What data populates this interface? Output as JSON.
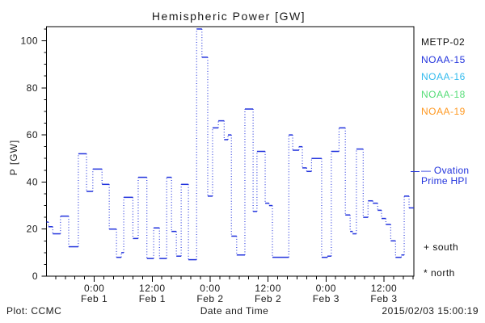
{
  "title": "Hemispheric Power [GW]",
  "footer": {
    "plot_credit": "Plot: CCMC",
    "timestamp": "2015/02/03 15:00:19"
  },
  "legend": {
    "satellites": [
      {
        "label": "METP-02",
        "color": "#111111"
      },
      {
        "label": "NOAA-15",
        "color": "#2233dd"
      },
      {
        "label": "NOAA-16",
        "color": "#33bbee"
      },
      {
        "label": "NOAA-18",
        "color": "#55dd77"
      },
      {
        "label": "NOAA-19",
        "color": "#ff9922"
      }
    ],
    "line_sample_line1": "— Ovation",
    "line_sample_line2": "Prime HPI",
    "south_label": "+ south",
    "north_label": "* north"
  },
  "colors": {
    "curve": "#2233dd",
    "axis": "#000000",
    "text": "#1a1a1a"
  },
  "chart_data": {
    "type": "line",
    "subtype": "step-dotted",
    "title": "Hemispheric Power [GW]",
    "xlabel": "Date and Time",
    "ylabel": "P [GW]",
    "series_name": "Ovation Prime HPI",
    "ylim": [
      0,
      106
    ],
    "y_ticks": [
      0,
      20,
      40,
      60,
      80,
      100
    ],
    "y_minor_step": 5,
    "x_span_hours": 76.1,
    "x_minor_start_hours": 1.9,
    "x_minor_step_hours": 2,
    "x_major_ticks": [
      {
        "t": 9.9,
        "time": "0:00",
        "date": "Feb 1"
      },
      {
        "t": 21.9,
        "time": "12:00",
        "date": "Feb 1"
      },
      {
        "t": 33.9,
        "time": "0:00",
        "date": "Feb 2"
      },
      {
        "t": 45.9,
        "time": "12:00",
        "date": "Feb 2"
      },
      {
        "t": 57.9,
        "time": "0:00",
        "date": "Feb 3"
      },
      {
        "t": 69.9,
        "time": "12:00",
        "date": "Feb 3"
      }
    ],
    "t_end": 76.1,
    "steps": [
      [
        0.0,
        23
      ],
      [
        0.4,
        21
      ],
      [
        1.3,
        18
      ],
      [
        2.9,
        25.5
      ],
      [
        4.6,
        12.5
      ],
      [
        6.6,
        52
      ],
      [
        8.3,
        36
      ],
      [
        9.6,
        45.5
      ],
      [
        11.5,
        39
      ],
      [
        13.0,
        20
      ],
      [
        14.5,
        8
      ],
      [
        15.5,
        10
      ],
      [
        16.0,
        33.5
      ],
      [
        17.9,
        16
      ],
      [
        19.0,
        42
      ],
      [
        20.8,
        7.5
      ],
      [
        22.2,
        20.5
      ],
      [
        23.4,
        7.5
      ],
      [
        24.9,
        42
      ],
      [
        25.9,
        19
      ],
      [
        26.9,
        8.5
      ],
      [
        27.9,
        39
      ],
      [
        29.4,
        7
      ],
      [
        31.1,
        105
      ],
      [
        32.2,
        93
      ],
      [
        33.4,
        34
      ],
      [
        34.4,
        63
      ],
      [
        35.6,
        66
      ],
      [
        36.8,
        58
      ],
      [
        37.6,
        60
      ],
      [
        38.3,
        17
      ],
      [
        39.4,
        9
      ],
      [
        41.1,
        71
      ],
      [
        42.8,
        27.5
      ],
      [
        43.6,
        53
      ],
      [
        45.3,
        31
      ],
      [
        46.1,
        30
      ],
      [
        46.8,
        8
      ],
      [
        50.2,
        60
      ],
      [
        51.0,
        53.5
      ],
      [
        52.3,
        55
      ],
      [
        53.0,
        46
      ],
      [
        53.9,
        44.5
      ],
      [
        54.9,
        50
      ],
      [
        57.0,
        8
      ],
      [
        58.2,
        8.5
      ],
      [
        59.0,
        53
      ],
      [
        60.6,
        63
      ],
      [
        61.9,
        26
      ],
      [
        62.9,
        19
      ],
      [
        63.4,
        18
      ],
      [
        64.2,
        54
      ],
      [
        65.6,
        25
      ],
      [
        66.6,
        32
      ],
      [
        67.6,
        31
      ],
      [
        68.6,
        28
      ],
      [
        69.4,
        24.5
      ],
      [
        70.3,
        22
      ],
      [
        71.3,
        15
      ],
      [
        72.3,
        8
      ],
      [
        73.5,
        9
      ],
      [
        74.1,
        34
      ],
      [
        75.1,
        29
      ]
    ]
  }
}
